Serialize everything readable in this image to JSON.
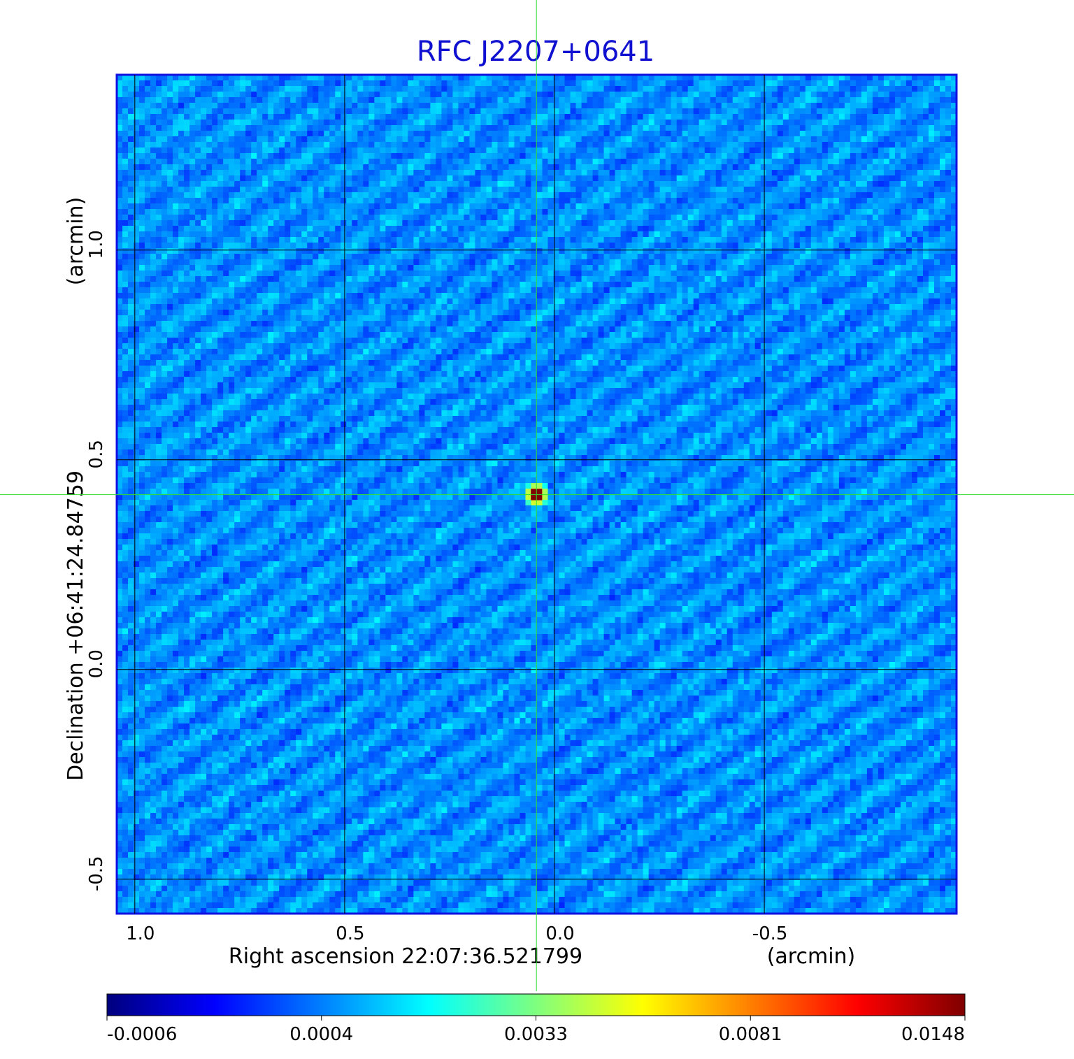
{
  "chart_data": {
    "type": "image",
    "title": "RFC J2207+0641",
    "title_color": "#1010d0",
    "x_label": "Right ascension  22:07:36.521799",
    "x_unit": "(arcmin)",
    "y_label": "Declination  +06:41:24.84759",
    "y_unit": "(arcmin)",
    "xlim": [
      1.043,
      -0.958
    ],
    "ylim": [
      -0.582,
      1.418
    ],
    "xticks": [
      {
        "value": 1,
        "label": "1.0"
      },
      0.5,
      {
        "value": 0,
        "label": "0.0"
      },
      -0.5
    ],
    "yticks": [
      {
        "value": 1,
        "label": "1.0"
      },
      0.5,
      {
        "value": 0,
        "label": "0.0"
      },
      -0.5
    ],
    "grid": true,
    "source": {
      "x": 0.043,
      "y": 0.417
    },
    "crosshair_color": "#33dd33",
    "colormap": [
      "#00007f",
      "#0000ff",
      "#007fff",
      "#00ffff",
      "#7fff7f",
      "#ffff00",
      "#ff7f00",
      "#ff0000",
      "#7f0000"
    ],
    "colorbar_ticks": [
      -0.0006,
      0.0004,
      0.0033,
      0.0081,
      0.0148
    ]
  }
}
